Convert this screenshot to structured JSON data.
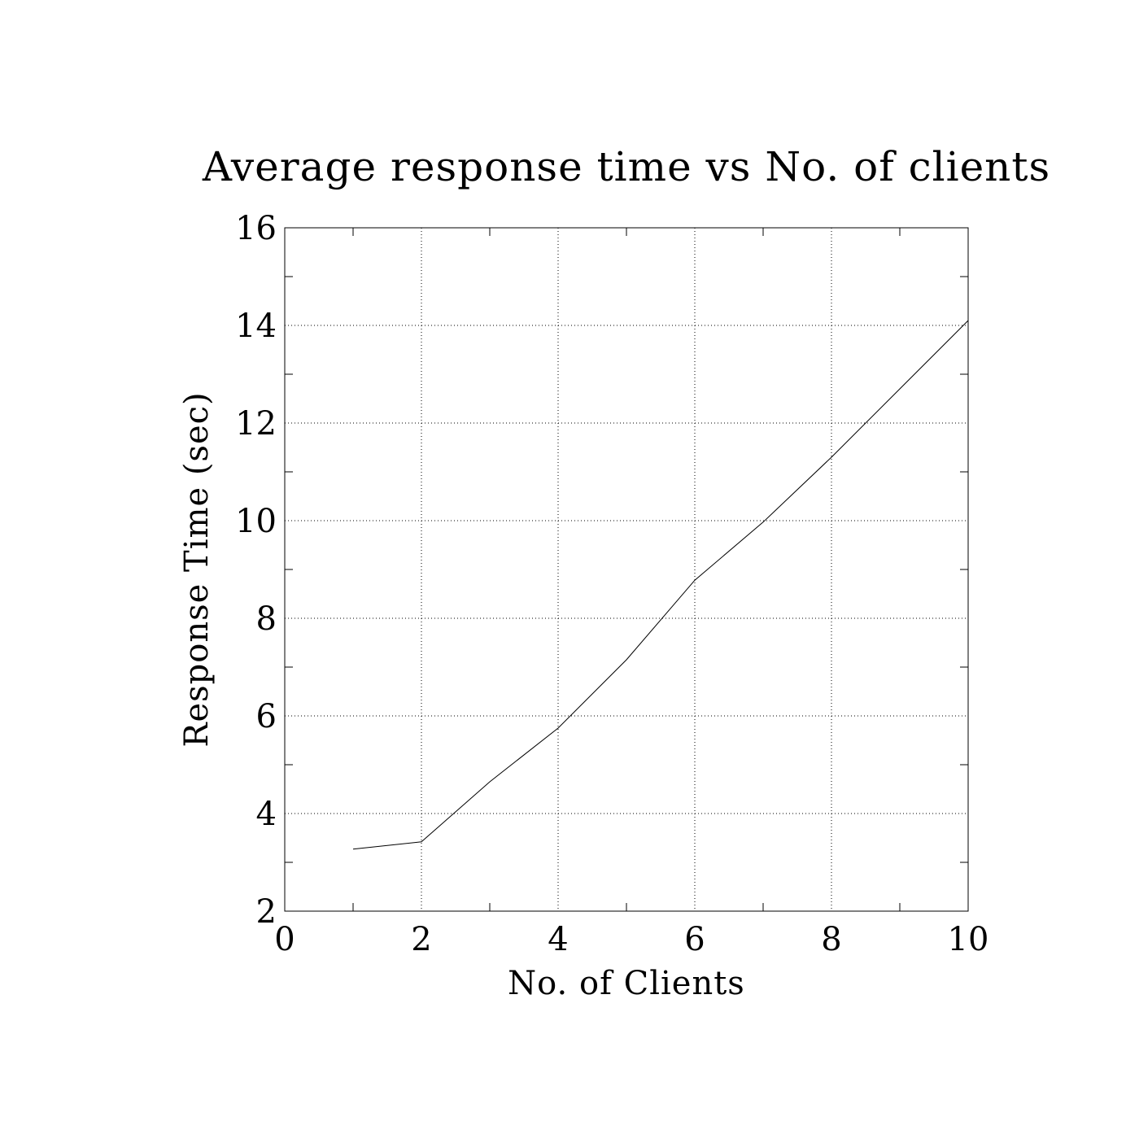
{
  "chart_data": {
    "type": "line",
    "title": "Average response time vs No. of clients",
    "xlabel": "No. of Clients",
    "ylabel": "Response Time (sec)",
    "xlim": [
      0,
      10
    ],
    "ylim": [
      2,
      16
    ],
    "x_ticks": [
      0,
      2,
      4,
      6,
      8,
      10
    ],
    "y_ticks": [
      2,
      4,
      6,
      8,
      10,
      12,
      14,
      16
    ],
    "x_tick_labels": [
      "0",
      "2",
      "4",
      "6",
      "8",
      "10"
    ],
    "y_tick_labels": [
      "2",
      "4",
      "6",
      "8",
      "10",
      "12",
      "14",
      "16"
    ],
    "grid": true,
    "legend": "none",
    "series": [
      {
        "x": [
          1,
          2,
          3,
          4,
          5,
          6,
          7,
          8,
          9,
          10
        ],
        "y": [
          3.27,
          3.42,
          4.65,
          5.75,
          7.15,
          8.78,
          9.97,
          11.3,
          12.7,
          14.1
        ],
        "color": "#000000"
      }
    ]
  }
}
